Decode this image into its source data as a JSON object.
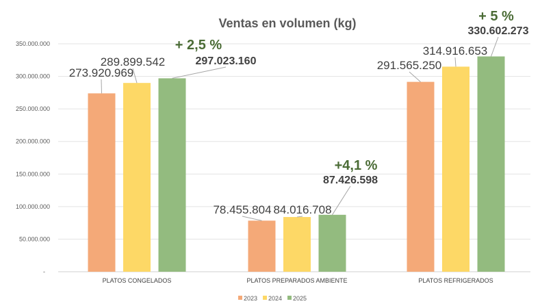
{
  "chart_data": {
    "type": "bar",
    "title": "Ventas en volumen (kg)",
    "categories": [
      "PLATOS CONGELADOS",
      "PLATOS PREPARADOS AMBIENTE",
      "PLATOS REFRIGERADOS"
    ],
    "series": [
      {
        "name": "2023",
        "color": "#f4a978",
        "values": [
          273920969,
          78455804,
          291565250
        ],
        "labels": [
          "273.920.969",
          "78.455.804",
          "291.565.250"
        ]
      },
      {
        "name": "2024",
        "color": "#fdd866",
        "values": [
          289899542,
          84016708,
          314916653
        ],
        "labels": [
          "289.899.542",
          "84.016.708",
          "314.916.653"
        ]
      },
      {
        "name": "2025",
        "color": "#93bb7f",
        "values": [
          297023160,
          87426598,
          330602273
        ],
        "labels": [
          "297.023.160",
          "87.426.598",
          "330.602.273"
        ]
      }
    ],
    "annotations": [
      "+ 2,5 %",
      "+4,1 %",
      "+ 5 %"
    ],
    "ylim": [
      0,
      350000000
    ],
    "yticks": [
      0,
      50000000,
      100000000,
      150000000,
      200000000,
      250000000,
      300000000,
      350000000
    ],
    "ytick_labels": [
      "-",
      "50.000.000",
      "100.000.000",
      "150.000.000",
      "200.000.000",
      "250.000.000",
      "300.000.000",
      "350.000.000"
    ],
    "grid": true,
    "legend": "bottom",
    "annotation_color": "#4a6b35"
  }
}
